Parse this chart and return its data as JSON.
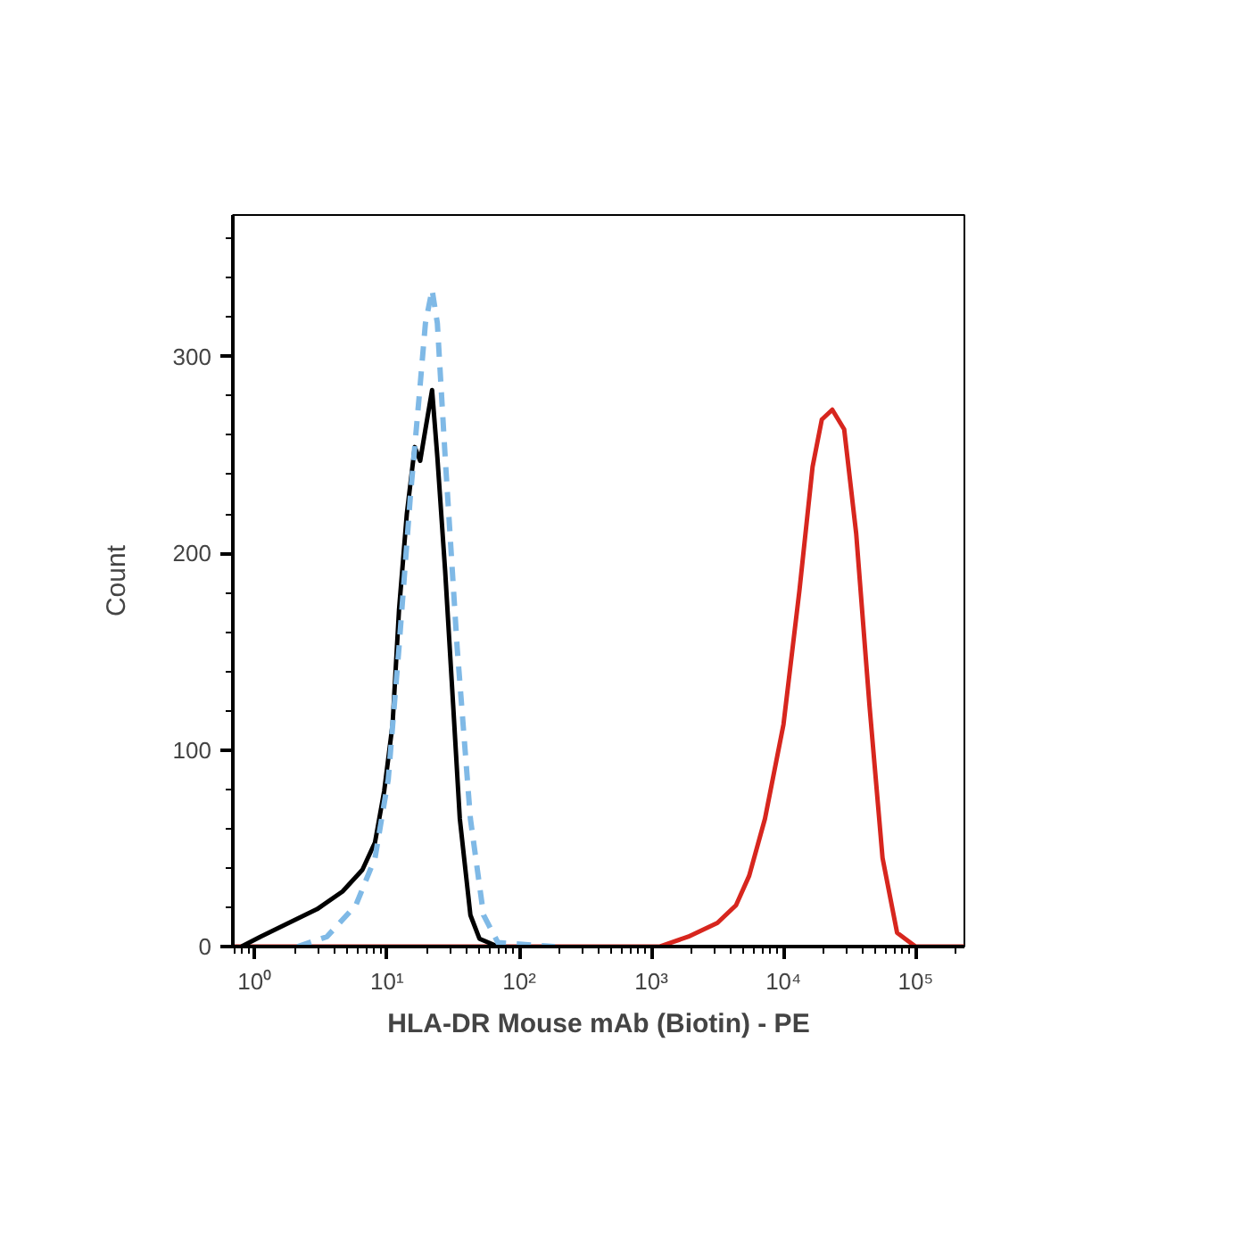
{
  "chart_data": {
    "type": "line",
    "xlabel": "HLA-DR Mouse mAb (Biotin) - PE",
    "ylabel": "Count",
    "log": "x",
    "grid": false,
    "marker": "none",
    "xlim": [
      0.68,
      234000
    ],
    "ylim": [
      0,
      372
    ],
    "xticks": [
      {
        "value": 1,
        "label": "10⁰"
      },
      {
        "value": 10,
        "label": "10¹"
      },
      {
        "value": 100,
        "label": "10²"
      },
      {
        "value": 1000,
        "label": "10³"
      },
      {
        "value": 10000,
        "label": "10⁴"
      },
      {
        "value": 100000,
        "label": "10⁵"
      }
    ],
    "yticks": [
      0,
      100,
      200,
      300
    ],
    "series": [
      {
        "color": "#d7261e",
        "line_style": "solid",
        "x": [
          0.68,
          1150,
          1900,
          3160,
          4370,
          5500,
          7240,
          10000,
          13200,
          16600,
          19500,
          23400,
          28800,
          35500,
          44700,
          56200,
          72400,
          100000,
          234000
        ],
        "values": [
          0,
          0,
          5,
          12,
          21,
          36,
          65,
          113,
          181,
          244,
          268,
          273,
          263,
          210,
          123,
          45,
          7,
          0,
          0
        ]
      },
      {
        "color": "#000000",
        "line_style": "solid",
        "x": [
          0.79,
          1.1,
          1.8,
          2.95,
          4.6,
          6.5,
          8.1,
          9.5,
          11,
          12.3,
          14.1,
          16.2,
          17.8,
          19.5,
          21.9,
          24,
          27.5,
          31.6,
          35.5,
          42.7,
          50,
          69
        ],
        "values": [
          0,
          5,
          12,
          19,
          28,
          39,
          53,
          79,
          113,
          171,
          220,
          254,
          247,
          263,
          283,
          249,
          191,
          123,
          65,
          16,
          4,
          0
        ]
      },
      {
        "color": "#7fb9e6",
        "line_style": "dashed",
        "x": [
          2.1,
          3.5,
          5.8,
          8.1,
          10.2,
          12.3,
          15,
          17.4,
          19.5,
          21.9,
          24,
          27.5,
          33.9,
          42.7,
          53.7,
          69,
          186
        ],
        "values": [
          0,
          5,
          21,
          45,
          85,
          152,
          229,
          278,
          317,
          334,
          317,
          249,
          152,
          65,
          16,
          2,
          0
        ]
      }
    ]
  }
}
